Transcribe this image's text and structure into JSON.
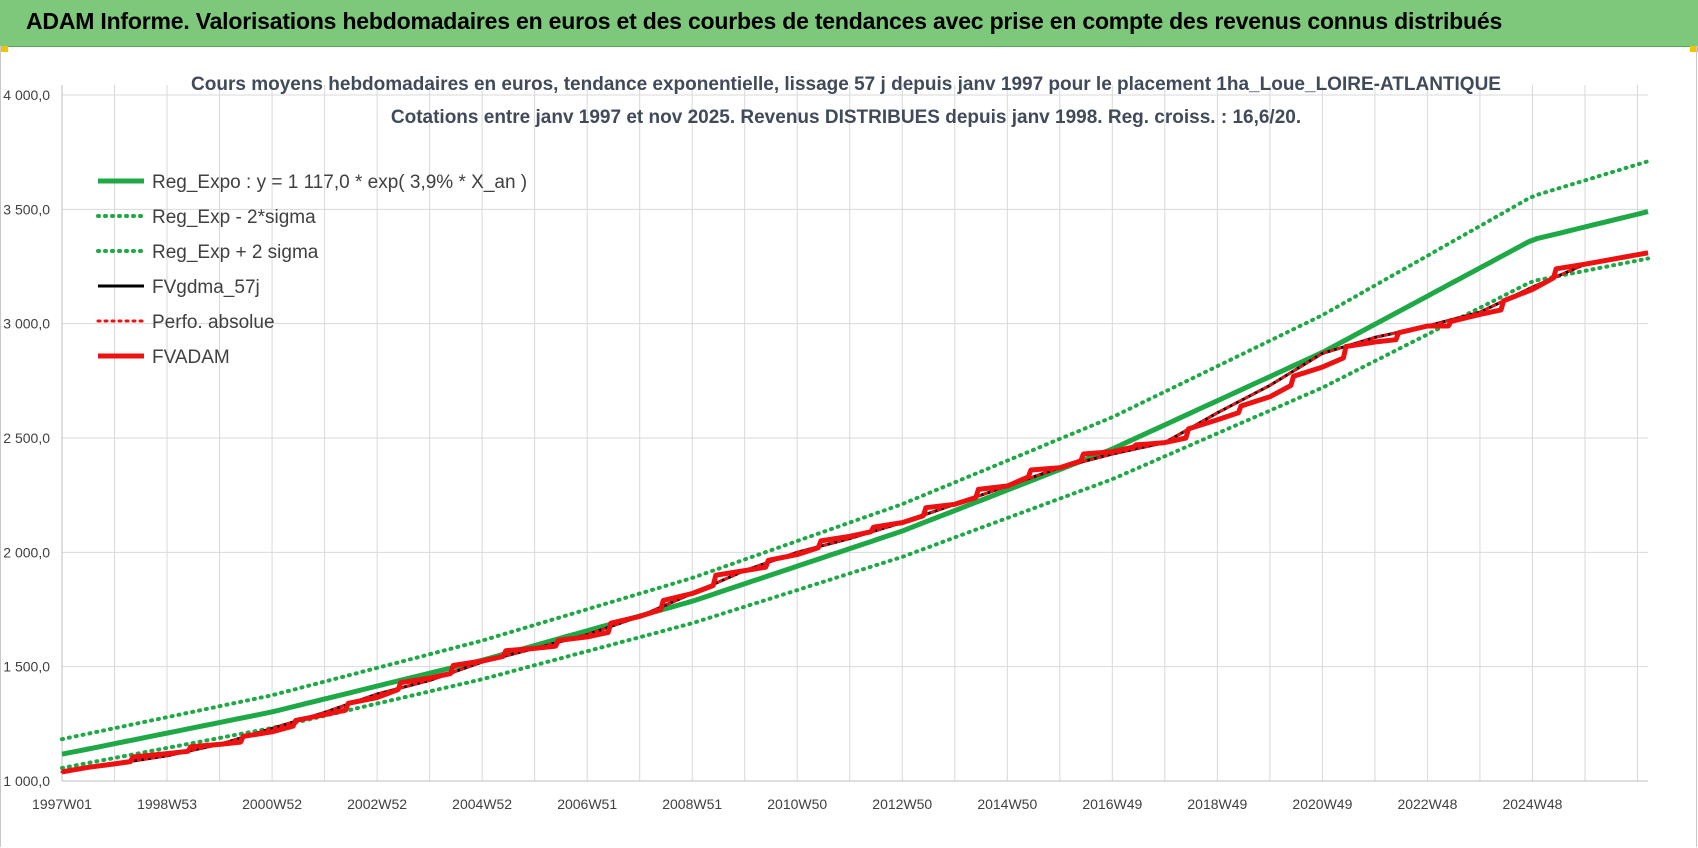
{
  "banner": {
    "title": "ADAM Informe. Valorisations hebdomadaires en euros et des courbes de tendances avec prise en compte des revenus connus distribués"
  },
  "chart_data": {
    "type": "line",
    "title": "Cours moyens hebdomadaires en euros, tendance exponentielle, lissage 57 j depuis janv 1997 pour le placement 1ha_Loue_LOIRE-ATLANTIQUE",
    "subtitle": "Cotations entre janv 1997 et nov 2025. Revenus DISTRIBUES depuis janv 1998. Reg. croiss. : 16,6/20.",
    "xlabel": "",
    "ylabel": "",
    "ylim": [
      1000,
      4000
    ],
    "xlim": [
      1997.0,
      2027.2
    ],
    "yticks": [
      "1 000,0",
      "1 500,0",
      "2 000,0",
      "2 500,0",
      "3 000,0",
      "3 500,0",
      "4 000,0"
    ],
    "ytick_values": [
      1000,
      1500,
      2000,
      2500,
      3000,
      3500,
      4000
    ],
    "xticks": [
      "1997W01",
      "1998W53",
      "2000W52",
      "2002W52",
      "2004W52",
      "2006W51",
      "2008W51",
      "2010W50",
      "2012W50",
      "2014W50",
      "2016W49",
      "2018W49",
      "2020W49",
      "2022W48",
      "2024W48"
    ],
    "xtick_values": [
      1997.0,
      1999.0,
      2001.0,
      2003.0,
      2005.0,
      2007.0,
      2009.0,
      2011.0,
      2013.0,
      2015.0,
      2017.0,
      2019.0,
      2021.0,
      2023.0,
      2025.0
    ],
    "grid": true,
    "legend_position": "top-left",
    "colors": {
      "green": "#1fa846",
      "red": "#ee1111",
      "black": "#000000",
      "grid": "#d9d9d9"
    },
    "series": [
      {
        "name": "Reg_Expo : y = 1 117,0 * exp( 3,9% *  X_an )",
        "style": "solid-green",
        "x": [
          1997,
          2001,
          2005,
          2009,
          2013,
          2017,
          2021,
          2025,
          2027.2
        ],
        "y": [
          1117,
          1302,
          1528,
          1786,
          2093,
          2452,
          2874,
          3367,
          3490
        ]
      },
      {
        "name": "Reg_Exp - 2*sigma",
        "style": "dotted-green",
        "x": [
          1997,
          2001,
          2005,
          2009,
          2013,
          2017,
          2021,
          2025,
          2027.2
        ],
        "y": [
          1057,
          1232,
          1445,
          1690,
          1980,
          2320,
          2720,
          3186,
          3285
        ]
      },
      {
        "name": "Reg_Exp + 2 sigma",
        "style": "dotted-green",
        "x": [
          1997,
          2001,
          2005,
          2009,
          2013,
          2017,
          2021,
          2025,
          2027.2
        ],
        "y": [
          1183,
          1375,
          1614,
          1888,
          2211,
          2591,
          3037,
          3557,
          3710
        ]
      },
      {
        "name": "FVgdma_57j",
        "style": "solid-black",
        "x": [
          1997.0,
          1998.0,
          1999.0,
          2000.0,
          2001.0,
          2002.0,
          2003.0,
          2004.0,
          2005.0,
          2006.0,
          2007.0,
          2008.0,
          2009.0,
          2010.0,
          2011.0,
          2012.0,
          2013.0,
          2014.0,
          2015.0,
          2016.0,
          2017.0,
          2018.0,
          2019.0,
          2020.0,
          2021.0,
          2022.0,
          2023.0,
          2024.0,
          2025.0,
          2026.0,
          2027.2
        ],
        "y": [
          1040,
          1075,
          1110,
          1160,
          1230,
          1300,
          1380,
          1440,
          1520,
          1580,
          1640,
          1720,
          1820,
          1920,
          2000,
          2060,
          2130,
          2210,
          2290,
          2370,
          2430,
          2480,
          2610,
          2730,
          2870,
          2940,
          2990,
          3050,
          3160,
          3260,
          3310
        ]
      },
      {
        "name": "Perfo. absolue",
        "style": "dotted-red",
        "x": [
          1997.0,
          1998.0,
          1999.0,
          2000.0,
          2001.0,
          2002.0,
          2003.0,
          2004.0,
          2005.0,
          2006.0,
          2007.0,
          2008.0,
          2009.0,
          2010.0,
          2011.0,
          2012.0,
          2013.0,
          2014.0,
          2015.0,
          2016.0,
          2017.0,
          2018.0,
          2019.0,
          2020.0,
          2021.0,
          2022.0,
          2023.0,
          2024.0,
          2025.0,
          2026.0,
          2027.2
        ],
        "y": [
          1040,
          1075,
          1110,
          1160,
          1230,
          1300,
          1380,
          1440,
          1520,
          1580,
          1640,
          1720,
          1820,
          1920,
          2000,
          2060,
          2130,
          2210,
          2290,
          2370,
          2430,
          2480,
          2610,
          2730,
          2870,
          2940,
          2990,
          3050,
          3160,
          3260,
          3310
        ]
      },
      {
        "name": "FVADAM",
        "style": "solid-red",
        "x": [
          1997.0,
          1997.5,
          1998.0,
          1998.3,
          1998.35,
          1999.0,
          1999.4,
          1999.45,
          2000.0,
          2000.4,
          2000.45,
          2001.0,
          2001.4,
          2001.45,
          2002.0,
          2002.4,
          2002.45,
          2003.0,
          2003.4,
          2003.45,
          2004.0,
          2004.4,
          2004.45,
          2005.0,
          2005.4,
          2005.45,
          2006.0,
          2006.4,
          2006.45,
          2007.0,
          2007.4,
          2007.45,
          2008.0,
          2008.4,
          2008.45,
          2009.0,
          2009.4,
          2009.45,
          2010.0,
          2010.4,
          2010.45,
          2011.0,
          2011.4,
          2011.45,
          2012.0,
          2012.4,
          2012.45,
          2013.0,
          2013.4,
          2013.45,
          2014.0,
          2014.4,
          2014.45,
          2015.0,
          2015.4,
          2015.45,
          2016.0,
          2016.4,
          2016.45,
          2017.0,
          2017.4,
          2017.45,
          2018.0,
          2018.4,
          2018.45,
          2019.0,
          2019.4,
          2019.45,
          2020.0,
          2020.4,
          2020.45,
          2021.0,
          2021.4,
          2021.45,
          2022.0,
          2022.4,
          2022.45,
          2023.0,
          2023.4,
          2023.45,
          2024.0,
          2024.4,
          2024.45,
          2025.0,
          2025.4,
          2025.45,
          2026.0,
          2027.2
        ],
        "y": [
          1040,
          1060,
          1075,
          1085,
          1105,
          1120,
          1130,
          1150,
          1160,
          1170,
          1195,
          1215,
          1240,
          1265,
          1290,
          1310,
          1340,
          1365,
          1400,
          1430,
          1450,
          1470,
          1505,
          1525,
          1545,
          1570,
          1580,
          1590,
          1615,
          1630,
          1650,
          1690,
          1720,
          1750,
          1790,
          1820,
          1855,
          1900,
          1920,
          1935,
          1965,
          1990,
          2020,
          2050,
          2070,
          2090,
          2110,
          2130,
          2160,
          2195,
          2210,
          2240,
          2275,
          2290,
          2330,
          2360,
          2370,
          2400,
          2430,
          2440,
          2460,
          2470,
          2480,
          2500,
          2540,
          2580,
          2610,
          2640,
          2680,
          2730,
          2770,
          2810,
          2850,
          2900,
          2920,
          2930,
          2960,
          2990,
          2990,
          3010,
          3040,
          3060,
          3100,
          3150,
          3200,
          3240,
          3260,
          3310
        ]
      }
    ]
  }
}
